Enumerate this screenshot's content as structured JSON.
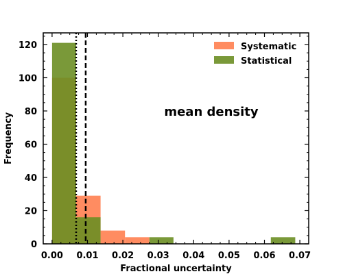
{
  "chart_data": {
    "type": "histogram",
    "xlabel": "Fractional uncertainty",
    "ylabel": "Frequency",
    "xlim": [
      -0.0025,
      0.0725
    ],
    "ylim": [
      0,
      127
    ],
    "xticks": [
      0.0,
      0.01,
      0.02,
      0.03,
      0.04,
      0.05,
      0.06,
      0.07
    ],
    "xtick_labels": [
      "0.00",
      "0.01",
      "0.02",
      "0.03",
      "0.04",
      "0.05",
      "0.06",
      "0.07"
    ],
    "yticks": [
      0,
      20,
      40,
      60,
      80,
      100,
      120
    ],
    "ytick_labels": [
      "0",
      "20",
      "40",
      "60",
      "80",
      "100",
      "120"
    ],
    "annotation": "mean density",
    "legend_position": "top-right",
    "series": [
      {
        "name": "Systematic",
        "color": "#ff7f50",
        "opacity": 0.9,
        "bins": [
          {
            "x0": 0.0,
            "x1": 0.0068,
            "count": 100
          },
          {
            "x0": 0.0068,
            "x1": 0.0137,
            "count": 29
          },
          {
            "x0": 0.0137,
            "x1": 0.0206,
            "count": 8
          },
          {
            "x0": 0.0206,
            "x1": 0.0275,
            "count": 4
          }
        ]
      },
      {
        "name": "Statistical",
        "color": "#6b8e23",
        "opacity": 0.9,
        "bins": [
          {
            "x0": 0.0,
            "x1": 0.0068,
            "count": 121
          },
          {
            "x0": 0.0068,
            "x1": 0.0137,
            "count": 16
          },
          {
            "x0": 0.0275,
            "x1": 0.0343,
            "count": 4
          },
          {
            "x0": 0.0618,
            "x1": 0.0687,
            "count": 4
          }
        ]
      }
    ],
    "vlines": [
      {
        "x": 0.0068,
        "style": "dotted"
      },
      {
        "x": 0.0095,
        "style": "dashed"
      }
    ]
  }
}
